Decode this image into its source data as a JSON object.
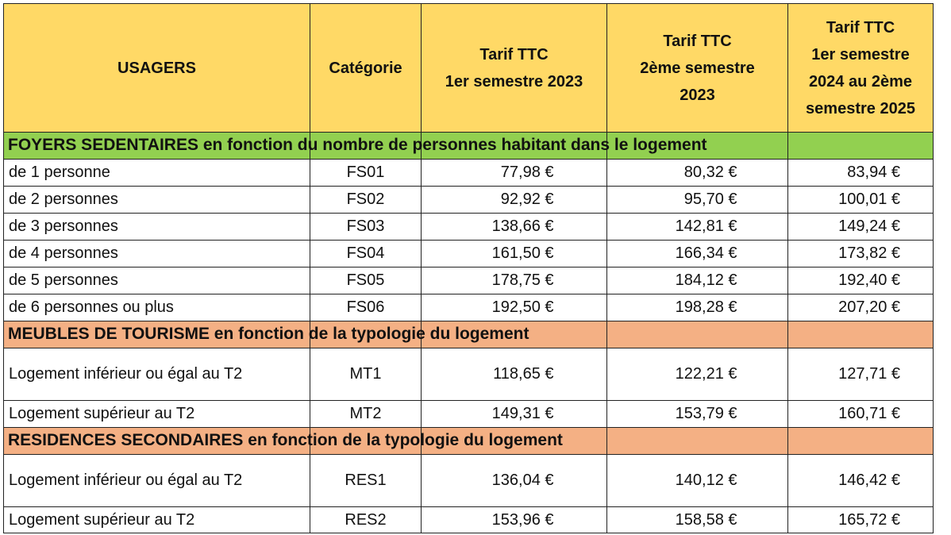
{
  "table": {
    "headers": {
      "usagers": "USAGERS",
      "categorie": "Catégorie",
      "tarif_2023_s1": [
        "Tarif TTC",
        "1er semestre 2023"
      ],
      "tarif_2023_s2": [
        "Tarif TTC",
        "2ème semestre",
        "2023"
      ],
      "tarif_2024_2025": [
        "Tarif TTC",
        "1er semestre",
        "2024 au 2ème",
        "semestre 2025"
      ]
    },
    "sections": [
      {
        "title": "FOYERS SEDENTAIRES en fonction du nombre de personnes habitant dans le logement",
        "color": "#92d050",
        "rows": [
          {
            "usager": "de 1 personne",
            "categorie": "FS01",
            "t1": "77,98 €",
            "t2": "80,32 €",
            "t3": "83,94 €"
          },
          {
            "usager": "de 2 personnes",
            "categorie": "FS02",
            "t1": "92,92 €",
            "t2": "95,70 €",
            "t3": "100,01 €"
          },
          {
            "usager": "de 3 personnes",
            "categorie": "FS03",
            "t1": "138,66 €",
            "t2": "142,81 €",
            "t3": "149,24 €"
          },
          {
            "usager": "de 4 personnes",
            "categorie": "FS04",
            "t1": "161,50 €",
            "t2": "166,34 €",
            "t3": "173,82 €"
          },
          {
            "usager": "de 5 personnes",
            "categorie": "FS05",
            "t1": "178,75 €",
            "t2": "184,12 €",
            "t3": "192,40 €"
          },
          {
            "usager": "de 6 personnes ou plus",
            "categorie": "FS06",
            "t1": "192,50 €",
            "t2": "198,28 €",
            "t3": "207,20 €"
          }
        ]
      },
      {
        "title": "MEUBLES DE TOURISME en fonction de la typologie du logement",
        "color": "#f4b084",
        "rows": [
          {
            "usager": "Logement inférieur ou égal au T2",
            "categorie": "MT1",
            "t1": "118,65 €",
            "t2": "122,21 €",
            "t3": "127,71 €"
          },
          {
            "usager": "Logement supérieur au T2",
            "categorie": "MT2",
            "t1": "149,31 €",
            "t2": "153,79 €",
            "t3": "160,71 €"
          }
        ]
      },
      {
        "title": "RESIDENCES SECONDAIRES en fonction de la typologie du logement",
        "color": "#f4b084",
        "rows": [
          {
            "usager": "Logement inférieur ou égal au T2",
            "categorie": "RES1",
            "t1": "136,04 €",
            "t2": "140,12 €",
            "t3": "146,42 €"
          },
          {
            "usager": "Logement supérieur au T2",
            "categorie": "RES2",
            "t1": "153,96 €",
            "t2": "158,58 €",
            "t3": "165,72 €"
          }
        ]
      }
    ]
  }
}
